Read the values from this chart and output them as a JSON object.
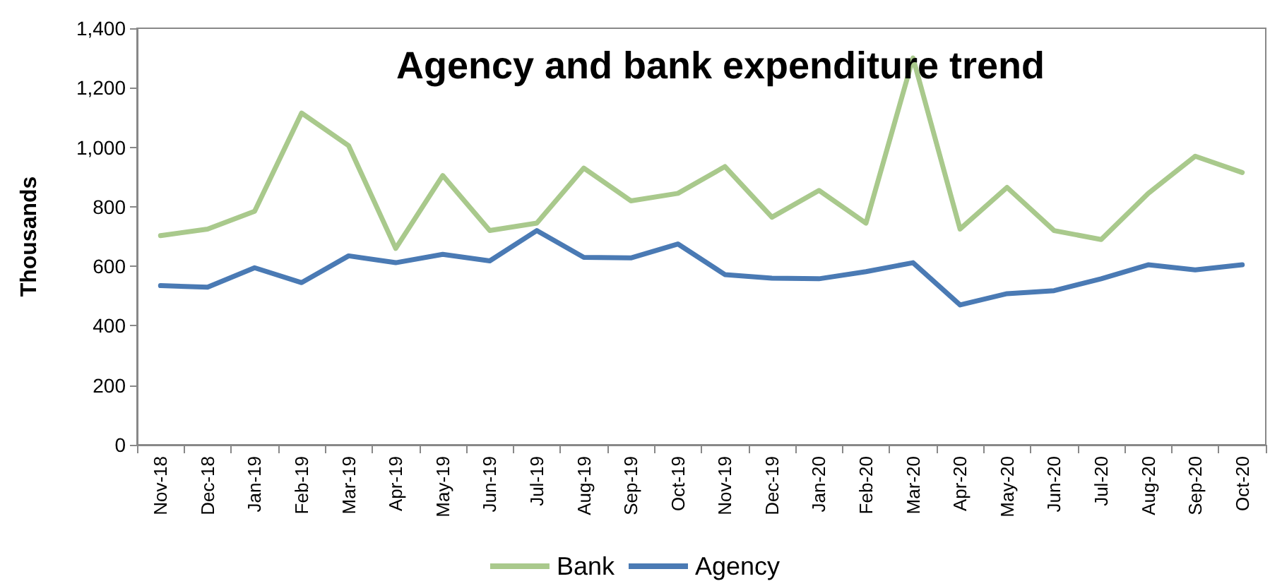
{
  "chart_data": {
    "type": "line",
    "title": "Agency and bank expenditure trend",
    "ylabel": "Thousands",
    "categories": [
      "Nov-18",
      "Dec-18",
      "Jan-19",
      "Feb-19",
      "Mar-19",
      "Apr-19",
      "May-19",
      "Jun-19",
      "Jul-19",
      "Aug-19",
      "Sep-19",
      "Oct-19",
      "Nov-19",
      "Dec-19",
      "Jan-20",
      "Feb-20",
      "Mar-20",
      "Apr-20",
      "May-20",
      "Jun-20",
      "Jul-20",
      "Aug-20",
      "Sep-20",
      "Oct-20"
    ],
    "series": [
      {
        "name": "Bank",
        "color": "#a9c98c",
        "values": [
          703,
          725,
          785,
          1115,
          1005,
          660,
          905,
          720,
          745,
          930,
          820,
          845,
          935,
          765,
          855,
          745,
          1300,
          725,
          865,
          720,
          690,
          845,
          970,
          915
        ]
      },
      {
        "name": "Agency",
        "color": "#4a7ab4",
        "values": [
          535,
          530,
          595,
          545,
          635,
          612,
          640,
          618,
          720,
          630,
          628,
          675,
          572,
          560,
          558,
          582,
          612,
          470,
          508,
          518,
          558,
          605,
          588,
          605
        ]
      }
    ],
    "ylim": [
      0,
      1400
    ],
    "yticks": [
      {
        "value": 0,
        "label": "0"
      },
      {
        "value": 200,
        "label": "200"
      },
      {
        "value": 400,
        "label": "400"
      },
      {
        "value": 600,
        "label": "600"
      },
      {
        "value": 800,
        "label": "800"
      },
      {
        "value": 1000,
        "label": "1,000"
      },
      {
        "value": 1200,
        "label": "1,200"
      },
      {
        "value": 1400,
        "label": "1,400"
      }
    ],
    "grid": false,
    "legend": "bottom",
    "marker": "none",
    "line_style": "solid"
  }
}
